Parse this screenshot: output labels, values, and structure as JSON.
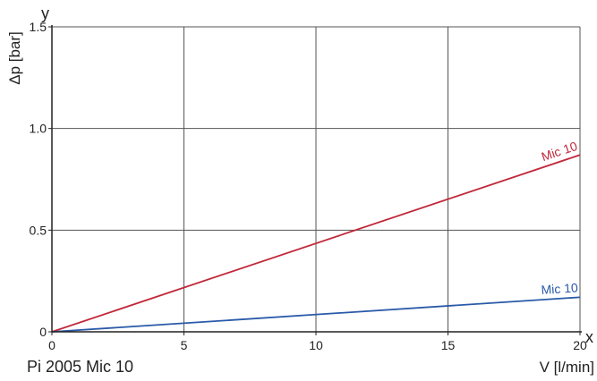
{
  "chart_data": {
    "type": "line",
    "title": "",
    "caption": "Pi 2005 Mic 10",
    "xlabel": "V [l/min]",
    "ylabel": "Δp [bar]",
    "x_axis_letter": "x",
    "y_axis_letter": "y",
    "xlim": [
      0,
      20
    ],
    "ylim": [
      0,
      1.5
    ],
    "x_ticks": [
      0,
      5,
      10,
      15,
      20
    ],
    "x_tick_labels": [
      "0",
      "5",
      "10",
      "15",
      "20"
    ],
    "y_ticks": [
      0,
      0.5,
      1.0,
      1.5
    ],
    "y_tick_labels": [
      "0",
      "0.5",
      "1.0",
      "1.5"
    ],
    "grid": true,
    "series": [
      {
        "name": "Mic 10",
        "color": "#c0283a",
        "x": [
          0,
          20
        ],
        "y": [
          0,
          0.87
        ]
      },
      {
        "name": "Mic 10",
        "color": "#2a5aa8",
        "x": [
          0,
          20
        ],
        "y": [
          0,
          0.17
        ]
      }
    ]
  }
}
